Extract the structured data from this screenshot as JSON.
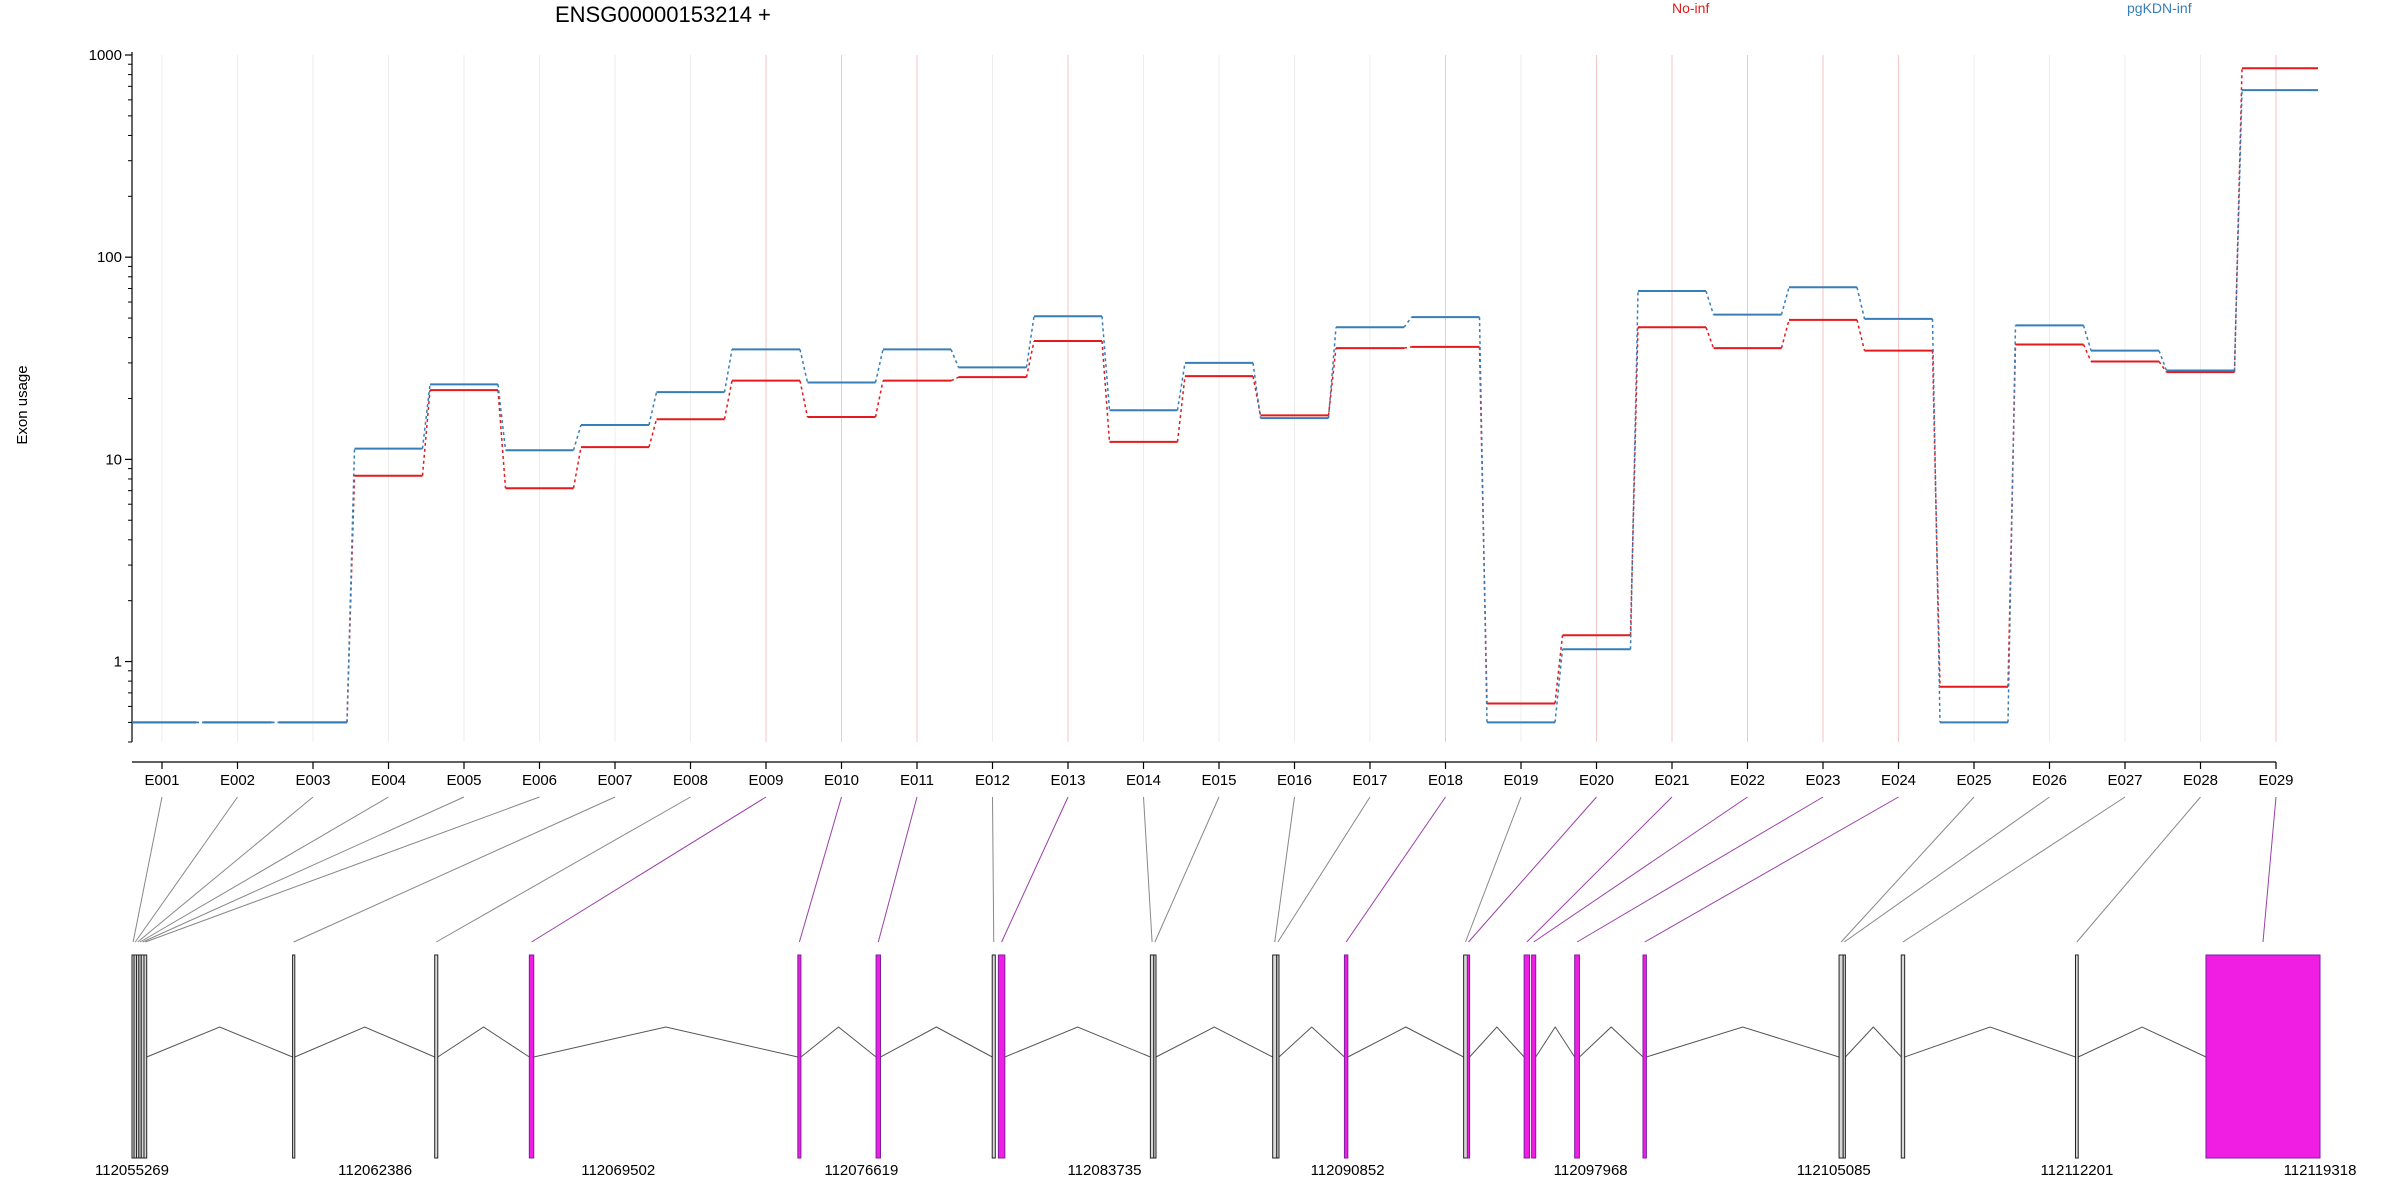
{
  "chart_data": {
    "type": "line",
    "title": "ENSG00000153214 +",
    "ylabel": "Exon usage",
    "yscale": "log",
    "ylim": [
      0.4,
      1000
    ],
    "yticks": [
      1,
      10,
      100,
      1000
    ],
    "ytick_labels": [
      "1",
      "10",
      "100",
      "1000"
    ],
    "legend_placement": "top",
    "categories": [
      "E001",
      "E002",
      "E003",
      "E004",
      "E005",
      "E006",
      "E007",
      "E008",
      "E009",
      "E010",
      "E011",
      "E012",
      "E013",
      "E014",
      "E015",
      "E016",
      "E017",
      "E018",
      "E019",
      "E020",
      "E021",
      "E022",
      "E023",
      "E024",
      "E025",
      "E026",
      "E027",
      "E028",
      "E029"
    ],
    "series": [
      {
        "name": "No-inf",
        "color": "#e41a1c",
        "values": [
          0.5,
          0.5,
          0.5,
          8.3,
          22,
          7.2,
          11.5,
          15.8,
          24.5,
          16.2,
          24.5,
          25.5,
          38.5,
          12.2,
          25.8,
          16.5,
          35.5,
          36,
          0.62,
          1.35,
          45,
          35.5,
          49,
          34.5,
          0.75,
          37,
          30.5,
          27,
          860
        ]
      },
      {
        "name": "pgKDN-inf",
        "color": "#377eb8",
        "values": [
          0.5,
          0.5,
          0.5,
          11.3,
          23.5,
          11.1,
          14.8,
          21.5,
          35,
          24,
          35,
          28.5,
          51,
          17.5,
          30,
          16,
          45,
          50.5,
          0.5,
          1.15,
          68,
          52,
          71,
          49.5,
          0.5,
          46,
          34.5,
          27.5,
          670
        ]
      }
    ],
    "significant_exons": [
      "E009",
      "E010",
      "E011",
      "E013",
      "E018",
      "E020",
      "E021",
      "E022",
      "E023",
      "E024",
      "E029"
    ],
    "gene_model": {
      "coordinate_labels": [
        "112055269",
        "112062386",
        "112069502",
        "112076619",
        "112083735",
        "112090852",
        "112097968",
        "112105085",
        "112112201",
        "112119318"
      ],
      "genome_start": 112055269,
      "genome_end": 112119318,
      "exons": [
        {
          "id": "E001",
          "start": 112055269,
          "end": 112055329
        },
        {
          "id": "E002",
          "start": 112055329,
          "end": 112055400
        },
        {
          "id": "E003",
          "start": 112055400,
          "end": 112055470
        },
        {
          "id": "E004",
          "start": 112055470,
          "end": 112055540
        },
        {
          "id": "E005",
          "start": 112055540,
          "end": 112055620
        },
        {
          "id": "E006",
          "start": 112055620,
          "end": 112055700
        },
        {
          "id": "E007",
          "start": 112059970,
          "end": 112060030
        },
        {
          "id": "E008",
          "start": 112064130,
          "end": 112064220
        },
        {
          "id": "E009",
          "start": 112066900,
          "end": 112067030
        },
        {
          "id": "E010",
          "start": 112074760,
          "end": 112074850
        },
        {
          "id": "E011",
          "start": 112077050,
          "end": 112077180
        },
        {
          "id": "E012",
          "start": 112080450,
          "end": 112080540
        },
        {
          "id": "E013",
          "start": 112080630,
          "end": 112080820
        },
        {
          "id": "E014",
          "start": 112085080,
          "end": 112085180
        },
        {
          "id": "E015",
          "start": 112085180,
          "end": 112085230
        },
        {
          "id": "E016",
          "start": 112088660,
          "end": 112088780
        },
        {
          "id": "E017",
          "start": 112088780,
          "end": 112088830
        },
        {
          "id": "E018",
          "start": 112090760,
          "end": 112090860
        },
        {
          "id": "E019",
          "start": 112094250,
          "end": 112094360
        },
        {
          "id": "E020",
          "start": 112094360,
          "end": 112094410
        },
        {
          "id": "E021",
          "start": 112096020,
          "end": 112096180
        },
        {
          "id": "E022",
          "start": 112096240,
          "end": 112096360
        },
        {
          "id": "E023",
          "start": 112097500,
          "end": 112097640
        },
        {
          "id": "E024",
          "start": 112099500,
          "end": 112099600
        },
        {
          "id": "E025",
          "start": 112105240,
          "end": 112105360
        },
        {
          "id": "E026",
          "start": 112105360,
          "end": 112105410
        },
        {
          "id": "E027",
          "start": 112107060,
          "end": 112107160
        },
        {
          "id": "E028",
          "start": 112112160,
          "end": 112112240
        },
        {
          "id": "E029",
          "start": 112115980,
          "end": 112119318
        }
      ]
    }
  }
}
